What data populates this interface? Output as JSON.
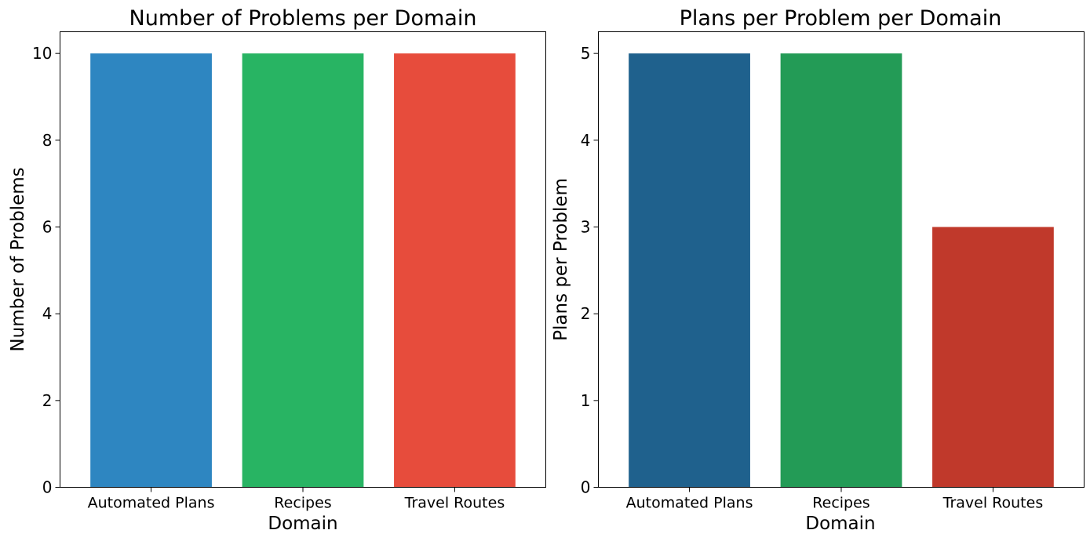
{
  "chart_data": [
    {
      "type": "bar",
      "title": "Number of Problems per Domain",
      "xlabel": "Domain",
      "ylabel": "Number of Problems",
      "categories": [
        "Automated Plans",
        "Recipes",
        "Travel Routes"
      ],
      "values": [
        10,
        10,
        10
      ],
      "colors": [
        "#2e86c1",
        "#28b463",
        "#e74c3c"
      ],
      "ylim": [
        0,
        10.5
      ],
      "yticks": [
        0,
        2,
        4,
        6,
        8,
        10
      ],
      "grid": false
    },
    {
      "type": "bar",
      "title": "Plans per Problem per Domain",
      "xlabel": "Domain",
      "ylabel": "Plans per Problem",
      "categories": [
        "Automated Plans",
        "Recipes",
        "Travel Routes"
      ],
      "values": [
        5,
        5,
        3
      ],
      "colors": [
        "#1f618d",
        "#239b56",
        "#c0392b"
      ],
      "ylim": [
        0,
        5.25
      ],
      "yticks": [
        0,
        1,
        2,
        3,
        4,
        5
      ],
      "grid": false
    }
  ]
}
